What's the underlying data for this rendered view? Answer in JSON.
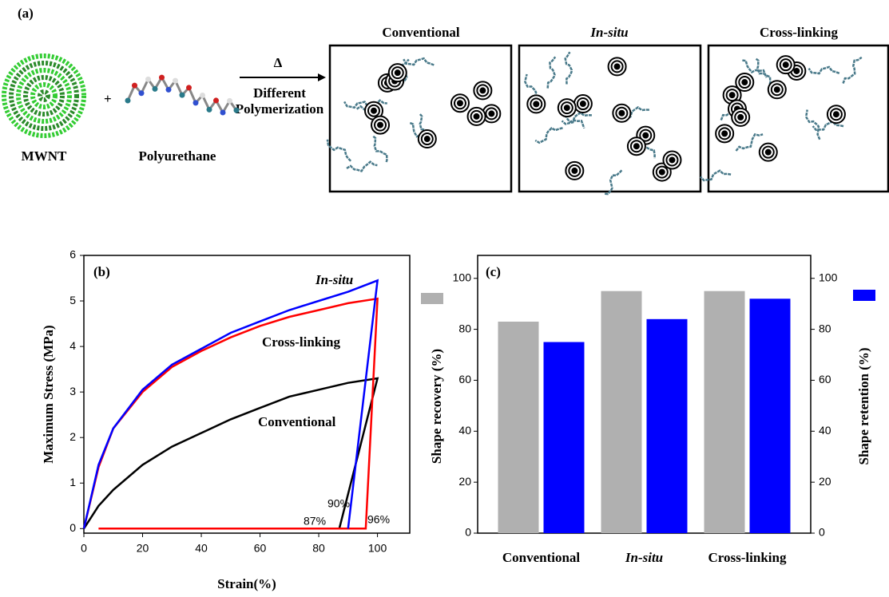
{
  "figure": {
    "panel_a": {
      "label": "(a)",
      "nanotube": "MWNT",
      "polymer": "Polyurethane",
      "heat": "Δ",
      "process": [
        "Different",
        "Polymerization"
      ],
      "methods": [
        "Conventional",
        "In-situ",
        "Cross-linking"
      ]
    }
  },
  "chart_data": [
    {
      "type": "line",
      "panel_label": "(b)",
      "x_label": "Strain(%)",
      "y_label": "Maximum Stress (MPa)",
      "xlim": [
        0,
        111
      ],
      "ylim": [
        -0.1,
        6
      ],
      "xticks": [
        0,
        20,
        40,
        60,
        80,
        100
      ],
      "yticks": [
        0,
        1,
        2,
        3,
        4,
        5,
        6
      ],
      "series": [
        {
          "name": "In-situ",
          "color": "#0000ff",
          "x": [
            0,
            5,
            10,
            20,
            30,
            40,
            50,
            60,
            70,
            80,
            90,
            100,
            90
          ],
          "values": [
            0,
            1.4,
            2.2,
            3.05,
            3.6,
            3.95,
            4.3,
            4.55,
            4.8,
            5.0,
            5.2,
            5.45,
            0
          ]
        },
        {
          "name": "Cross-linking",
          "color": "#ff0000",
          "x": [
            0,
            5,
            10,
            20,
            30,
            40,
            50,
            60,
            70,
            80,
            90,
            100,
            96,
            5
          ],
          "values": [
            0,
            1.35,
            2.2,
            3.0,
            3.55,
            3.9,
            4.2,
            4.45,
            4.65,
            4.8,
            4.95,
            5.05,
            0,
            0
          ]
        },
        {
          "name": "Conventional",
          "color": "#000000",
          "x": [
            0,
            5,
            10,
            20,
            30,
            40,
            50,
            60,
            70,
            80,
            90,
            100,
            87
          ],
          "values": [
            0,
            0.5,
            0.85,
            1.4,
            1.8,
            2.1,
            2.4,
            2.65,
            2.9,
            3.05,
            3.2,
            3.3,
            0
          ]
        }
      ],
      "annotations": [
        "90%",
        "87%",
        "96%"
      ]
    },
    {
      "type": "bar",
      "panel_label": "(c)",
      "categories": [
        "Conventional",
        "In-situ",
        "Cross-linking"
      ],
      "ylim": [
        0,
        109
      ],
      "yticks": [
        0,
        20,
        40,
        60,
        80,
        100
      ],
      "y2lim": [
        0,
        109
      ],
      "y2ticks": [
        0,
        20,
        40,
        60,
        80,
        100
      ],
      "series": [
        {
          "name": "Shape recovery (%)",
          "color": "#b0b0b0",
          "values": [
            83,
            95,
            95
          ]
        },
        {
          "name": "Shape retention (%)",
          "color": "#0000ff",
          "axis": "y2",
          "values": [
            75,
            84,
            92
          ]
        }
      ]
    }
  ]
}
